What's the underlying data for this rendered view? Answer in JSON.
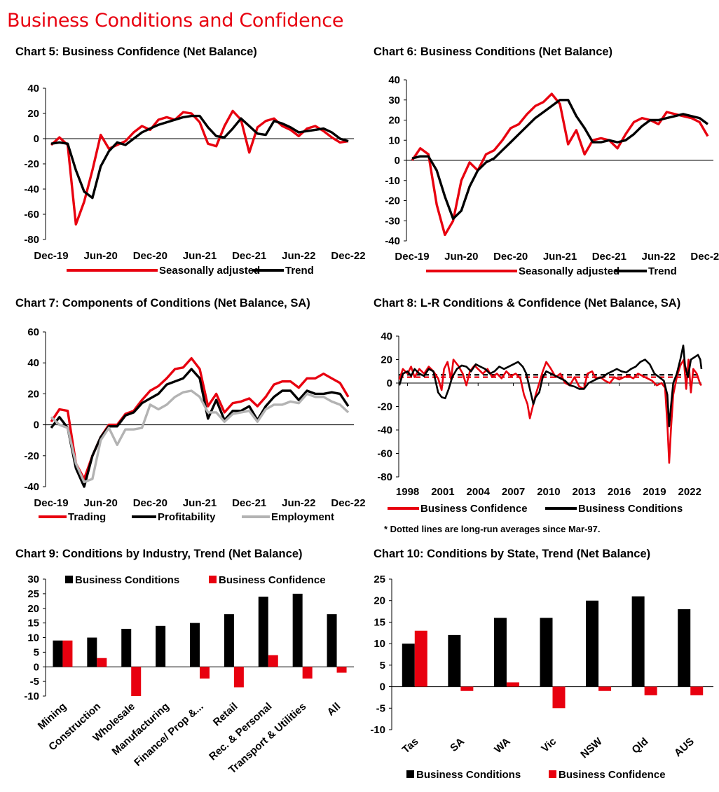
{
  "page": {
    "title": "Business Conditions and Confidence"
  },
  "colors": {
    "red": "#e8000f",
    "black": "#000000",
    "grey": "#b3b3b3"
  },
  "chart_data": [
    {
      "id": "c5",
      "type": "line",
      "title": "Chart 5: Business Confidence (Net Balance)",
      "x_ticks": [
        "Dec-19",
        "Jun-20",
        "Dec-20",
        "Jun-21",
        "Dec-21",
        "Jun-22",
        "Dec-22"
      ],
      "ylim": [
        -80,
        40
      ],
      "y_ticks": [
        40,
        20,
        0,
        -20,
        -40,
        -60,
        -80
      ],
      "legend": "bottom",
      "series": [
        {
          "name": "Seasonally adjusted",
          "color": "#e8000f",
          "values": [
            -5,
            1,
            -5,
            -68,
            -50,
            -25,
            3,
            -8,
            -5,
            -2,
            5,
            10,
            7,
            15,
            17,
            15,
            21,
            20,
            13,
            -4,
            -6,
            10,
            22,
            15,
            -11,
            9,
            14,
            16,
            10,
            7,
            2,
            8,
            10,
            6,
            1,
            -3,
            -2
          ]
        },
        {
          "name": "Trend",
          "color": "#000000",
          "values": [
            -4,
            -3,
            -4,
            -25,
            -42,
            -47,
            -22,
            -10,
            -3,
            -5,
            0,
            5,
            8,
            11,
            13,
            15,
            17,
            18,
            18,
            9,
            2,
            1,
            8,
            16,
            10,
            4,
            3,
            14,
            12,
            9,
            5,
            6,
            7,
            8,
            5,
            0,
            -2
          ]
        }
      ]
    },
    {
      "id": "c6",
      "type": "line",
      "title": "Chart 6: Business Conditions (Net Balance)",
      "x_ticks": [
        "Dec-19",
        "Jun-20",
        "Dec-20",
        "Jun-21",
        "Dec-21",
        "Jun-22",
        "Dec-22"
      ],
      "ylim": [
        -40,
        40
      ],
      "y_ticks": [
        40,
        30,
        20,
        10,
        0,
        -10,
        -20,
        -30,
        -40
      ],
      "legend": "bottom",
      "series": [
        {
          "name": "Seasonally adjusted",
          "color": "#e8000f",
          "values": [
            0,
            6,
            3,
            -22,
            -37,
            -30,
            -10,
            -1,
            -5,
            3,
            5,
            10,
            16,
            18,
            23,
            27,
            29,
            33,
            28,
            8,
            15,
            3,
            10,
            11,
            10,
            6,
            13,
            19,
            21,
            20,
            18,
            24,
            23,
            22,
            21,
            19,
            12
          ]
        },
        {
          "name": "Trend",
          "color": "#000000",
          "values": [
            1,
            2,
            2,
            -5,
            -18,
            -29,
            -25,
            -13,
            -5,
            -1,
            1,
            5,
            9,
            13,
            17,
            21,
            24,
            27,
            30,
            30,
            22,
            16,
            9,
            9,
            10,
            9,
            10,
            13,
            17,
            20,
            20,
            21,
            22,
            23,
            22,
            21,
            18
          ]
        }
      ]
    },
    {
      "id": "c7",
      "type": "line",
      "title": "Chart 7: Components of Conditions (Net Balance, SA)",
      "x_ticks": [
        "Dec-19",
        "Jun-20",
        "Dec-20",
        "Jun-21",
        "Dec-21",
        "Jun-22",
        "Dec-22"
      ],
      "ylim": [
        -40,
        60
      ],
      "y_ticks": [
        60,
        40,
        20,
        0,
        -20,
        -40
      ],
      "legend": "bottom",
      "series": [
        {
          "name": "Trading",
          "color": "#e8000f",
          "values": [
            2,
            10,
            9,
            -25,
            -35,
            -20,
            -8,
            0,
            0,
            7,
            9,
            16,
            22,
            25,
            30,
            36,
            37,
            43,
            36,
            12,
            20,
            8,
            14,
            15,
            17,
            12,
            18,
            26,
            28,
            28,
            24,
            30,
            30,
            33,
            30,
            27,
            18
          ]
        },
        {
          "name": "Profitability",
          "color": "#000000",
          "values": [
            -2,
            5,
            -2,
            -28,
            -40,
            -20,
            -8,
            -1,
            -1,
            6,
            8,
            14,
            17,
            20,
            26,
            28,
            30,
            36,
            30,
            4,
            16,
            3,
            9,
            9,
            12,
            3,
            12,
            18,
            22,
            22,
            16,
            22,
            20,
            20,
            21,
            20,
            12
          ]
        },
        {
          "name": "Employment",
          "color": "#b3b3b3",
          "values": [
            5,
            0,
            -2,
            -25,
            -37,
            -35,
            -10,
            -2,
            -13,
            -3,
            -3,
            -2,
            13,
            10,
            13,
            18,
            21,
            22,
            18,
            8,
            8,
            2,
            7,
            8,
            9,
            2,
            10,
            13,
            13,
            15,
            14,
            20,
            18,
            18,
            15,
            13,
            8
          ]
        }
      ]
    },
    {
      "id": "c8",
      "type": "line",
      "title": "Chart 8: L-R Conditions & Confidence (Net Balance, SA)",
      "x_ticks": [
        "1998",
        "2001",
        "2004",
        "2007",
        "2010",
        "2013",
        "2016",
        "2019",
        "2022"
      ],
      "x_range": [
        1997.25,
        2023.0
      ],
      "ylim": [
        -80,
        40
      ],
      "y_ticks": [
        40,
        20,
        0,
        -20,
        -40,
        -60,
        -80
      ],
      "legend": "bottom",
      "note": "* Dotted lines are long-run  averages since Mar-97.",
      "averages": {
        "Business Confidence": 5,
        "Business Conditions": 7
      },
      "series": [
        {
          "name": "Business Confidence",
          "color": "#e8000f",
          "points": [
            [
              1997.3,
              3
            ],
            [
              1997.6,
              12
            ],
            [
              1998.0,
              8
            ],
            [
              1998.3,
              14
            ],
            [
              1998.6,
              5
            ],
            [
              1999.0,
              12
            ],
            [
              1999.4,
              8
            ],
            [
              1999.8,
              14
            ],
            [
              2000.2,
              10
            ],
            [
              2000.6,
              4
            ],
            [
              2000.9,
              -6
            ],
            [
              2001.1,
              12
            ],
            [
              2001.4,
              18
            ],
            [
              2001.7,
              3
            ],
            [
              2001.9,
              20
            ],
            [
              2002.3,
              15
            ],
            [
              2002.7,
              8
            ],
            [
              2003.0,
              -2
            ],
            [
              2003.3,
              10
            ],
            [
              2003.7,
              15
            ],
            [
              2004.0,
              12
            ],
            [
              2004.4,
              8
            ],
            [
              2004.8,
              12
            ],
            [
              2005.2,
              5
            ],
            [
              2005.6,
              8
            ],
            [
              2006.0,
              4
            ],
            [
              2006.4,
              10
            ],
            [
              2006.8,
              6
            ],
            [
              2007.2,
              8
            ],
            [
              2007.6,
              4
            ],
            [
              2007.9,
              -10
            ],
            [
              2008.2,
              -18
            ],
            [
              2008.4,
              -30
            ],
            [
              2008.6,
              -22
            ],
            [
              2008.9,
              -10
            ],
            [
              2009.2,
              0
            ],
            [
              2009.5,
              10
            ],
            [
              2009.8,
              18
            ],
            [
              2010.2,
              12
            ],
            [
              2010.6,
              5
            ],
            [
              2011.0,
              8
            ],
            [
              2011.4,
              0
            ],
            [
              2011.8,
              -2
            ],
            [
              2012.2,
              5
            ],
            [
              2012.6,
              -3
            ],
            [
              2013.0,
              -5
            ],
            [
              2013.3,
              8
            ],
            [
              2013.7,
              10
            ],
            [
              2014.0,
              4
            ],
            [
              2014.4,
              5
            ],
            [
              2014.8,
              2
            ],
            [
              2015.2,
              0
            ],
            [
              2015.6,
              5
            ],
            [
              2016.0,
              3
            ],
            [
              2016.4,
              5
            ],
            [
              2016.8,
              6
            ],
            [
              2017.2,
              4
            ],
            [
              2017.6,
              8
            ],
            [
              2018.0,
              6
            ],
            [
              2018.4,
              4
            ],
            [
              2018.8,
              2
            ],
            [
              2019.2,
              -2
            ],
            [
              2019.6,
              0
            ],
            [
              2019.9,
              -4
            ],
            [
              2020.1,
              -35
            ],
            [
              2020.25,
              -68
            ],
            [
              2020.4,
              -40
            ],
            [
              2020.6,
              -10
            ],
            [
              2020.9,
              5
            ],
            [
              2021.2,
              15
            ],
            [
              2021.5,
              20
            ],
            [
              2021.7,
              -5
            ],
            [
              2021.9,
              20
            ],
            [
              2022.1,
              -8
            ],
            [
              2022.3,
              12
            ],
            [
              2022.6,
              8
            ],
            [
              2022.9,
              -1
            ],
            [
              2023.0,
              -2
            ]
          ]
        },
        {
          "name": "Business Conditions",
          "color": "#000000",
          "points": [
            [
              1997.3,
              -2
            ],
            [
              1997.6,
              8
            ],
            [
              1998.0,
              10
            ],
            [
              1998.3,
              6
            ],
            [
              1998.6,
              12
            ],
            [
              1999.0,
              8
            ],
            [
              1999.4,
              6
            ],
            [
              1999.8,
              12
            ],
            [
              2000.2,
              10
            ],
            [
              2000.6,
              -8
            ],
            [
              2000.9,
              -12
            ],
            [
              2001.2,
              -13
            ],
            [
              2001.5,
              -5
            ],
            [
              2001.8,
              5
            ],
            [
              2002.2,
              12
            ],
            [
              2002.6,
              15
            ],
            [
              2003.0,
              14
            ],
            [
              2003.4,
              10
            ],
            [
              2003.8,
              16
            ],
            [
              2004.2,
              14
            ],
            [
              2004.6,
              12
            ],
            [
              2005.0,
              8
            ],
            [
              2005.4,
              10
            ],
            [
              2005.8,
              14
            ],
            [
              2006.2,
              12
            ],
            [
              2006.6,
              14
            ],
            [
              2007.0,
              16
            ],
            [
              2007.4,
              18
            ],
            [
              2007.8,
              14
            ],
            [
              2008.1,
              8
            ],
            [
              2008.4,
              -5
            ],
            [
              2008.7,
              -18
            ],
            [
              2008.9,
              -12
            ],
            [
              2009.2,
              -8
            ],
            [
              2009.5,
              5
            ],
            [
              2009.8,
              10
            ],
            [
              2010.2,
              8
            ],
            [
              2010.6,
              6
            ],
            [
              2011.0,
              4
            ],
            [
              2011.4,
              2
            ],
            [
              2011.8,
              -2
            ],
            [
              2012.2,
              -3
            ],
            [
              2012.6,
              -5
            ],
            [
              2013.0,
              -5
            ],
            [
              2013.4,
              0
            ],
            [
              2013.8,
              2
            ],
            [
              2014.2,
              4
            ],
            [
              2014.6,
              5
            ],
            [
              2015.0,
              8
            ],
            [
              2015.4,
              10
            ],
            [
              2015.8,
              12
            ],
            [
              2016.2,
              10
            ],
            [
              2016.6,
              9
            ],
            [
              2017.0,
              12
            ],
            [
              2017.4,
              14
            ],
            [
              2017.8,
              18
            ],
            [
              2018.2,
              20
            ],
            [
              2018.6,
              16
            ],
            [
              2019.0,
              8
            ],
            [
              2019.4,
              5
            ],
            [
              2019.8,
              2
            ],
            [
              2020.1,
              -10
            ],
            [
              2020.25,
              -37
            ],
            [
              2020.4,
              -20
            ],
            [
              2020.6,
              0
            ],
            [
              2020.9,
              8
            ],
            [
              2021.2,
              20
            ],
            [
              2021.45,
              32
            ],
            [
              2021.6,
              15
            ],
            [
              2021.85,
              5
            ],
            [
              2022.1,
              20
            ],
            [
              2022.4,
              22
            ],
            [
              2022.7,
              24
            ],
            [
              2022.9,
              20
            ],
            [
              2023.0,
              12
            ]
          ]
        }
      ]
    },
    {
      "id": "c9",
      "type": "bar",
      "title": "Chart 9: Conditions by Industry, Trend (Net Balance)",
      "categories": [
        "Mining",
        "Construction",
        "Wholesale",
        "Manufacturing",
        "Finance/ Prop &...",
        "Retail",
        "Rec. & Personal",
        "Transport & Utilities",
        "All"
      ],
      "ylim": [
        -10,
        30
      ],
      "y_ticks": [
        30,
        25,
        20,
        15,
        10,
        5,
        0,
        -5,
        -10
      ],
      "legend": "top",
      "series": [
        {
          "name": "Business Conditions",
          "color": "#000000",
          "values": [
            9,
            10,
            13,
            14,
            15,
            18,
            24,
            25,
            18
          ]
        },
        {
          "name": "Business Confidence",
          "color": "#e8000f",
          "values": [
            9,
            3,
            -10,
            0,
            -4,
            -7,
            4,
            -4,
            -2
          ]
        }
      ]
    },
    {
      "id": "c10",
      "type": "bar",
      "title": "Chart 10: Conditions by State, Trend (Net Balance)",
      "categories": [
        "Tas",
        "SA",
        "WA",
        "Vic",
        "NSW",
        "Qld",
        "AUS"
      ],
      "ylim": [
        -10,
        25
      ],
      "y_ticks": [
        25,
        20,
        15,
        10,
        5,
        0,
        -5,
        -10
      ],
      "legend": "bottom",
      "series": [
        {
          "name": "Business Conditions",
          "color": "#000000",
          "values": [
            10,
            12,
            16,
            16,
            20,
            21,
            18
          ]
        },
        {
          "name": "Business Confidence",
          "color": "#e8000f",
          "values": [
            13,
            -1,
            1,
            -5,
            -1,
            -2,
            -2
          ]
        }
      ]
    }
  ]
}
